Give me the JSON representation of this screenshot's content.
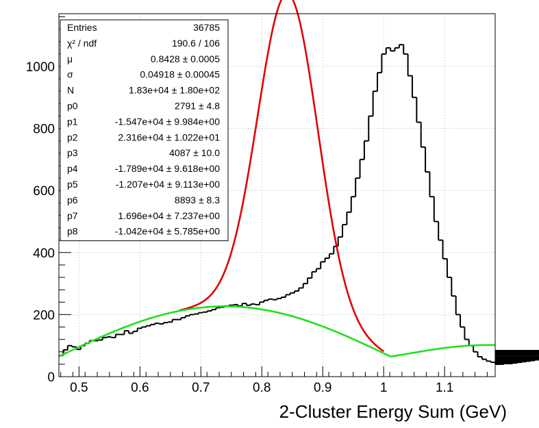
{
  "chart_data": {
    "type": "line",
    "title": "",
    "xlabel": "2-Cluster Energy Sum  (GeV)",
    "ylabel": "",
    "xlim": [
      0.467,
      1.183
    ],
    "ylim": [
      0,
      1170
    ],
    "grid": true,
    "x_ticks": [
      "0.5",
      "0.6",
      "0.7",
      "0.8",
      "0.9",
      "1",
      "1.1"
    ],
    "y_ticks": [
      "0",
      "200",
      "400",
      "600",
      "800",
      "1000"
    ],
    "stats_box": {
      "placement": "top-left",
      "rows": [
        {
          "key": "Entries",
          "value": "36785"
        },
        {
          "key": "χ² / ndf",
          "value": "190.6 / 106"
        },
        {
          "key": "μ",
          "value": "0.8428 ± 0.0005"
        },
        {
          "key": "σ",
          "value": "0.04918 ± 0.00045"
        },
        {
          "key": "N",
          "value": "1.83e+04 ± 1.80e+02"
        },
        {
          "key": "p0",
          "value": "2791 ± 4.8"
        },
        {
          "key": "p1",
          "value": "-1.547e+04 ± 9.984e+00"
        },
        {
          "key": "p2",
          "value": "2.316e+04 ± 1.022e+01"
        },
        {
          "key": "p3",
          "value": "4087 ± 10.0"
        },
        {
          "key": "p4",
          "value": "-1.789e+04 ± 9.618e+00"
        },
        {
          "key": "p5",
          "value": "-1.207e+04 ± 9.113e+00"
        },
        {
          "key": "p6",
          "value": "8893 ± 8.3"
        },
        {
          "key": "p7",
          "value": "1.696e+04 ± 7.237e+00"
        },
        {
          "key": "p8",
          "value": "-1.042e+04 ± 5.785e+00"
        }
      ]
    },
    "histogram": {
      "x_start": 0.467,
      "bin_width": 0.00716,
      "color": "#000000",
      "values": [
        68,
        86,
        100,
        96,
        88,
        100,
        108,
        116,
        116,
        118,
        126,
        128,
        126,
        136,
        136,
        148,
        140,
        146,
        156,
        160,
        164,
        168,
        172,
        170,
        174,
        176,
        184,
        184,
        190,
        196,
        200,
        202,
        206,
        208,
        212,
        216,
        222,
        224,
        228,
        230,
        232,
        228,
        236,
        230,
        234,
        232,
        240,
        246,
        250,
        248,
        252,
        256,
        264,
        270,
        276,
        286,
        300,
        318,
        338,
        348,
        370,
        382,
        396,
        420,
        450,
        490,
        530,
        580,
        640,
        700,
        760,
        840,
        920,
        980,
        1040,
        1060,
        1050,
        1060,
        1070,
        1040,
        970,
        900,
        820,
        740,
        660,
        580,
        500,
        440,
        380,
        320,
        260,
        200,
        160,
        120,
        100,
        80,
        64,
        56,
        50,
        46,
        42,
        40,
        40,
        42,
        42,
        44,
        46,
        48,
        50,
        52,
        54,
        58,
        60,
        64,
        66,
        70,
        72,
        74,
        76,
        78,
        80,
        82,
        84,
        84,
        82
      ]
    },
    "series": [
      {
        "fn": "total_fit",
        "color": "#e00000",
        "x_range": [
          0.665,
          1.0
        ]
      },
      {
        "fn": "background_fit",
        "color": "#1ee01e",
        "x_range": [
          0.467,
          1.183
        ]
      }
    ]
  }
}
